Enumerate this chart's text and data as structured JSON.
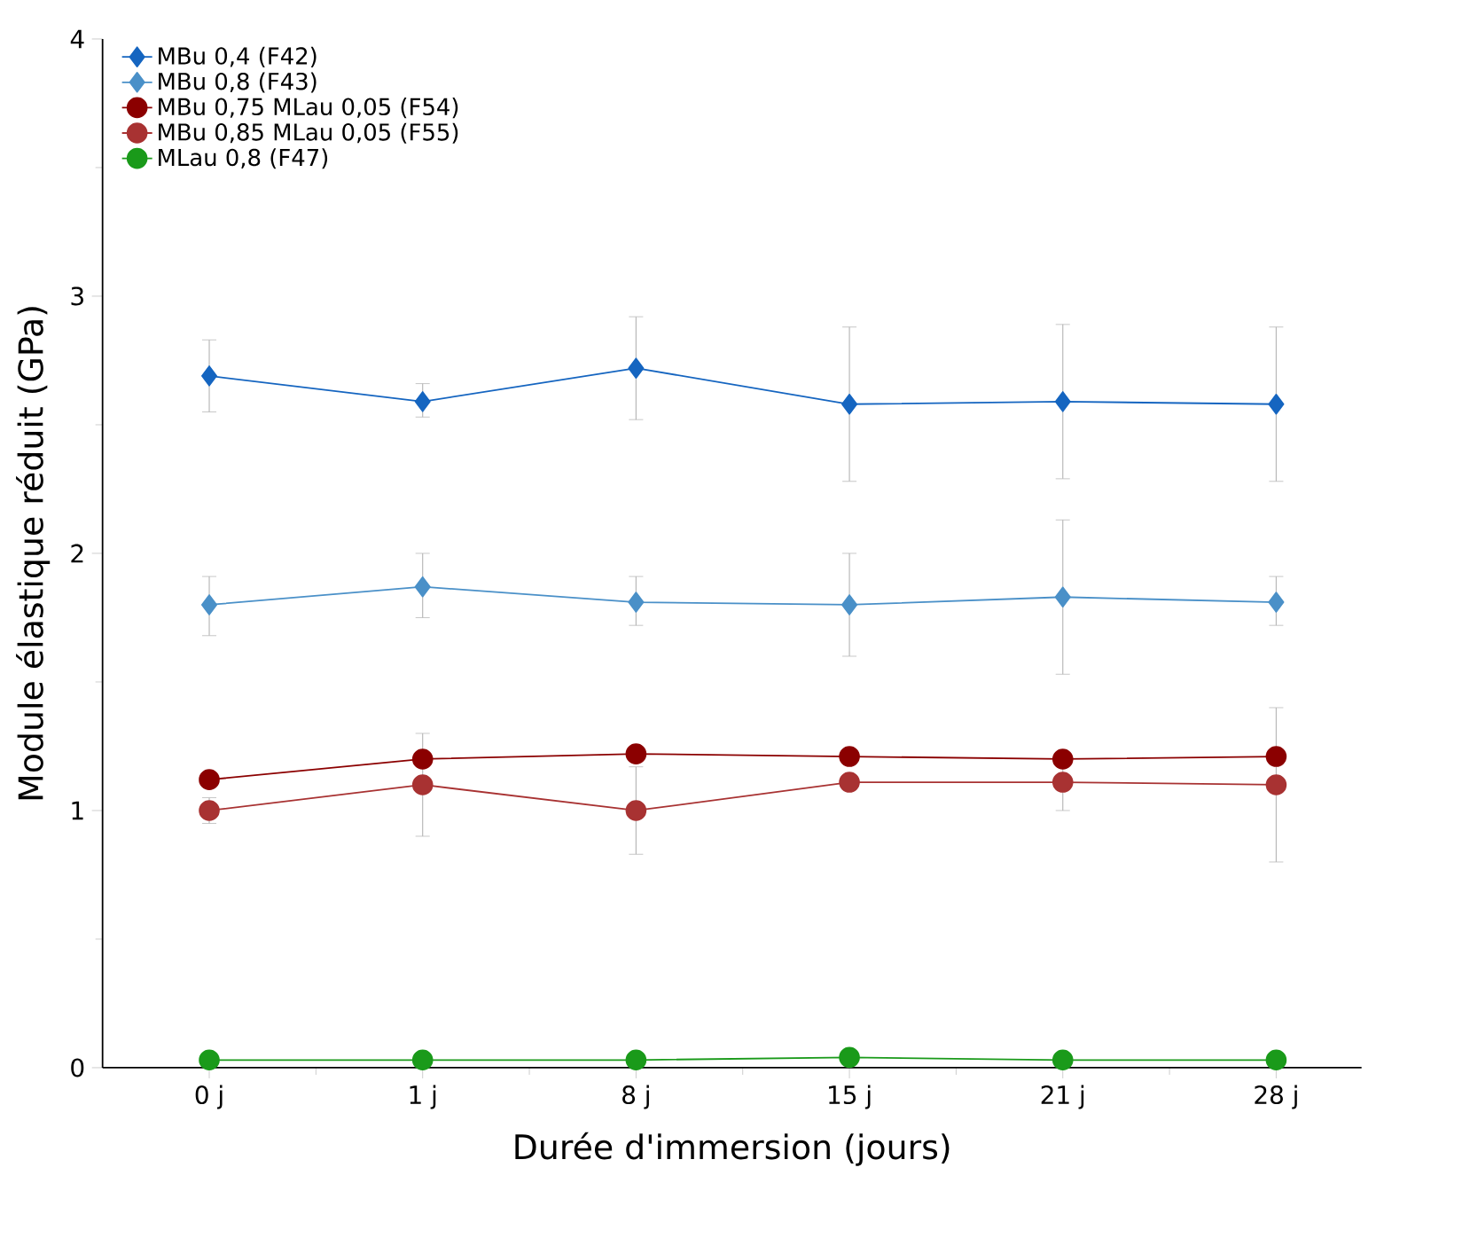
{
  "chart_data": {
    "type": "line",
    "xlabel": "Durée d'immersion (jours)",
    "ylabel": "Module élastique réduit (GPa)",
    "categories": [
      "0 j",
      "1 j",
      "8 j",
      "15 j",
      "21 j",
      "28 j"
    ],
    "ylim": [
      0,
      4
    ],
    "yticks": [
      0,
      1,
      2,
      3,
      4
    ],
    "legend": "top left",
    "grid": false,
    "line_style": "solid",
    "series": [
      {
        "name": "MBu 0,4 (F42)",
        "color": "#1565c0",
        "marker": "diamond",
        "values": [
          2.69,
          2.59,
          2.72,
          2.58,
          2.59,
          2.58
        ],
        "errors": [
          [
            2.55,
            2.83
          ],
          [
            2.53,
            2.66
          ],
          [
            2.52,
            2.92
          ],
          [
            2.28,
            2.88
          ],
          [
            2.29,
            2.89
          ],
          [
            2.28,
            2.88
          ]
        ]
      },
      {
        "name": "MBu 0,8 (F43)",
        "color": "#4a90c8",
        "marker": "diamond",
        "values": [
          1.8,
          1.87,
          1.81,
          1.8,
          1.83,
          1.81
        ],
        "errors": [
          [
            1.68,
            1.91
          ],
          [
            1.75,
            2.0
          ],
          [
            1.72,
            1.91
          ],
          [
            1.6,
            2.0
          ],
          [
            1.53,
            2.13
          ],
          [
            1.72,
            1.91
          ]
        ]
      },
      {
        "name": "MBu 0,75 MLau 0,05 (F54)",
        "color": "#8b0000",
        "marker": "circle",
        "values": [
          1.12,
          1.2,
          1.22,
          1.21,
          1.2,
          1.21
        ]
      },
      {
        "name": "MBu 0,85 MLau 0,05 (F55)",
        "color": "#a83232",
        "marker": "circle",
        "values": [
          1.0,
          1.1,
          1.0,
          1.11,
          1.11,
          1.1
        ],
        "errors": [
          [
            0.95,
            1.05
          ],
          [
            0.9,
            1.3
          ],
          [
            0.83,
            1.17
          ],
          null,
          [
            1.0,
            1.22
          ],
          [
            0.8,
            1.4
          ]
        ]
      },
      {
        "name": "MLau 0,8 (F47)",
        "color": "#1a9a1a",
        "marker": "circle",
        "values": [
          0.03,
          0.03,
          0.03,
          0.04,
          0.03,
          0.03
        ]
      }
    ]
  }
}
